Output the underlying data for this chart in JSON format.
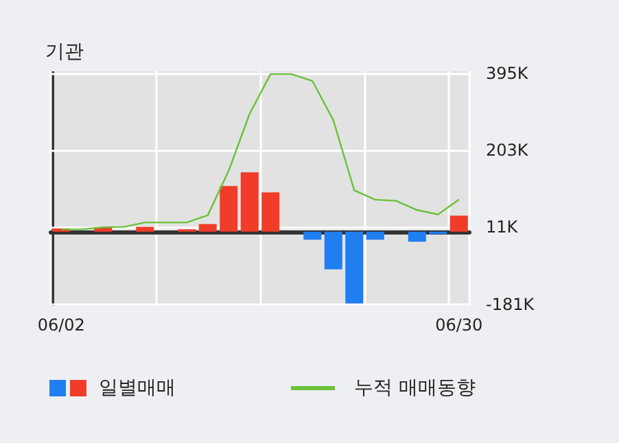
{
  "chart_data": {
    "type": "bar",
    "title": "기관",
    "categories": [
      "06/02",
      null,
      null,
      null,
      null,
      null,
      null,
      null,
      null,
      null,
      null,
      null,
      null,
      null,
      null,
      null,
      null,
      null,
      null,
      "06/30"
    ],
    "series": [
      {
        "name": "일별매매",
        "colors": [
          "#f03c28",
          null,
          "#f03c28",
          null,
          "#f03c28",
          null,
          "#f03c28",
          "#f03c28",
          "#f03c28",
          "#f03c28",
          "#f03c28",
          null,
          "#1f7ef0",
          "#1f7ef0",
          "#1f7ef0",
          "#1f7ef0",
          null,
          "#1f7ef0",
          "#1f7ef0",
          "#f03c28"
        ],
        "values": [
          8,
          null,
          11,
          null,
          12,
          null,
          6,
          19,
          114,
          148,
          98,
          null,
          -20,
          -94,
          -179,
          -20,
          null,
          -25,
          -6,
          40
        ]
      },
      {
        "name": "누적 매매동향",
        "type": "line",
        "color": "#6ac13a",
        "values": [
          6,
          6,
          11,
          12,
          23,
          23,
          23,
          41,
          152,
          294,
          393,
          393,
          376,
          278,
          103,
          80,
          77,
          54,
          43,
          80
        ]
      }
    ],
    "ylim": [
      -185,
      400
    ],
    "yticks": [
      {
        "value": -181,
        "label": "-181K"
      },
      {
        "value": 11,
        "label": "11K"
      },
      {
        "value": 203,
        "label": "203K"
      },
      {
        "value": 395,
        "label": "395K"
      }
    ],
    "grid": true,
    "legend": "bottom left",
    "marker": "none"
  }
}
